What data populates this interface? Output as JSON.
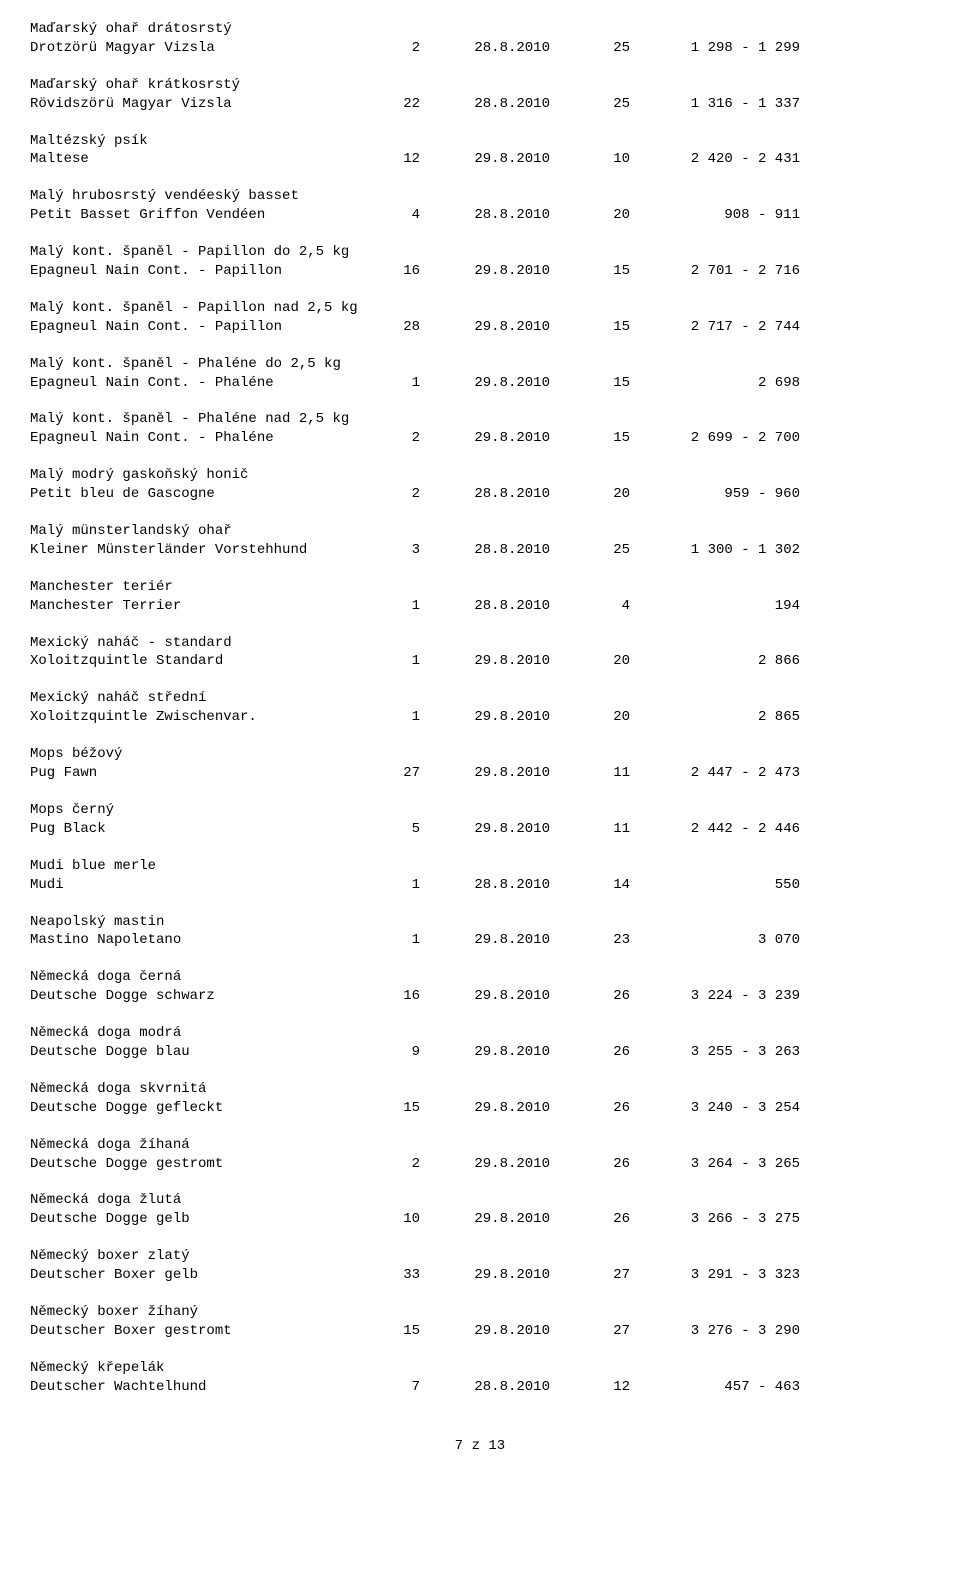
{
  "footer": "7 z 13",
  "entries": [
    {
      "cz": "Maďarský ohař drátosrstý",
      "int": "Drotzörü Magyar Vizsla",
      "count": "2",
      "date": "28.8.2010",
      "ring": "25",
      "range": "1 298 - 1 299"
    },
    {
      "cz": "Maďarský ohař krátkosrstý",
      "int": "Rövidszörü Magyar Vizsla",
      "count": "22",
      "date": "28.8.2010",
      "ring": "25",
      "range": "1 316 - 1 337"
    },
    {
      "cz": "Maltézský psík",
      "int": "Maltese",
      "count": "12",
      "date": "29.8.2010",
      "ring": "10",
      "range": "2 420 - 2 431"
    },
    {
      "cz": "Malý hrubosrstý vendéeský basset",
      "int": "Petit Basset Griffon Vendéen",
      "count": "4",
      "date": "28.8.2010",
      "ring": "20",
      "range": "908 - 911"
    },
    {
      "cz": "Malý kont. španěl - Papillon do 2,5 kg",
      "int": "Epagneul Nain Cont. - Papillon",
      "count": "16",
      "date": "29.8.2010",
      "ring": "15",
      "range": "2 701 - 2 716"
    },
    {
      "cz": "Malý kont. španěl - Papillon nad 2,5 kg",
      "int": "Epagneul Nain Cont. - Papillon",
      "count": "28",
      "date": "29.8.2010",
      "ring": "15",
      "range": "2 717 - 2 744"
    },
    {
      "cz": "Malý kont. španěl - Phaléne do 2,5 kg",
      "int": "Epagneul Nain Cont. - Phaléne",
      "count": "1",
      "date": "29.8.2010",
      "ring": "15",
      "range": "2 698"
    },
    {
      "cz": "Malý kont. španěl - Phaléne nad 2,5 kg",
      "int": "Epagneul Nain Cont. - Phaléne",
      "count": "2",
      "date": "29.8.2010",
      "ring": "15",
      "range": "2 699 - 2 700"
    },
    {
      "cz": "Malý modrý gaskoňský honič",
      "int": "Petit bleu de Gascogne",
      "count": "2",
      "date": "28.8.2010",
      "ring": "20",
      "range": "959 - 960"
    },
    {
      "cz": "Malý münsterlandský ohař",
      "int": "Kleiner Münsterländer Vorstehhund",
      "count": "3",
      "date": "28.8.2010",
      "ring": "25",
      "range": "1 300 - 1 302"
    },
    {
      "cz": "Manchester teriér",
      "int": "Manchester Terrier",
      "count": "1",
      "date": "28.8.2010",
      "ring": "4",
      "range": "194"
    },
    {
      "cz": "Mexický naháč - standard",
      "int": "Xoloitzquintle Standard",
      "count": "1",
      "date": "29.8.2010",
      "ring": "20",
      "range": "2 866"
    },
    {
      "cz": "Mexický naháč střední",
      "int": "Xoloitzquintle Zwischenvar.",
      "count": "1",
      "date": "29.8.2010",
      "ring": "20",
      "range": "2 865"
    },
    {
      "cz": "Mops béžový",
      "int": "Pug Fawn",
      "count": "27",
      "date": "29.8.2010",
      "ring": "11",
      "range": "2 447 - 2 473"
    },
    {
      "cz": "Mops černý",
      "int": "Pug Black",
      "count": "5",
      "date": "29.8.2010",
      "ring": "11",
      "range": "2 442 - 2 446"
    },
    {
      "cz": "Mudi blue merle",
      "int": "Mudi",
      "count": "1",
      "date": "28.8.2010",
      "ring": "14",
      "range": "550"
    },
    {
      "cz": "Neapolský mastin",
      "int": "Mastino Napoletano",
      "count": "1",
      "date": "29.8.2010",
      "ring": "23",
      "range": "3 070"
    },
    {
      "cz": "Německá doga černá",
      "int": "Deutsche Dogge schwarz",
      "count": "16",
      "date": "29.8.2010",
      "ring": "26",
      "range": "3 224 - 3 239"
    },
    {
      "cz": "Německá doga modrá",
      "int": "Deutsche Dogge blau",
      "count": "9",
      "date": "29.8.2010",
      "ring": "26",
      "range": "3 255 - 3 263"
    },
    {
      "cz": "Německá doga skvrnitá",
      "int": "Deutsche Dogge gefleckt",
      "count": "15",
      "date": "29.8.2010",
      "ring": "26",
      "range": "3 240 - 3 254"
    },
    {
      "cz": "Německá doga žíhaná",
      "int": "Deutsche Dogge gestromt",
      "count": "2",
      "date": "29.8.2010",
      "ring": "26",
      "range": "3 264 - 3 265"
    },
    {
      "cz": "Německá doga žlutá",
      "int": "Deutsche Dogge gelb",
      "count": "10",
      "date": "29.8.2010",
      "ring": "26",
      "range": "3 266 - 3 275"
    },
    {
      "cz": "Německý boxer zlatý",
      "int": "Deutscher Boxer gelb",
      "count": "33",
      "date": "29.8.2010",
      "ring": "27",
      "range": "3 291 - 3 323"
    },
    {
      "cz": "Německý boxer žíhaný",
      "int": "Deutscher Boxer gestromt",
      "count": "15",
      "date": "29.8.2010",
      "ring": "27",
      "range": "3 276 - 3 290"
    },
    {
      "cz": "Německý křepelák",
      "int": "Deutscher Wachtelhund",
      "count": "7",
      "date": "28.8.2010",
      "ring": "12",
      "range": "457 - 463"
    }
  ]
}
